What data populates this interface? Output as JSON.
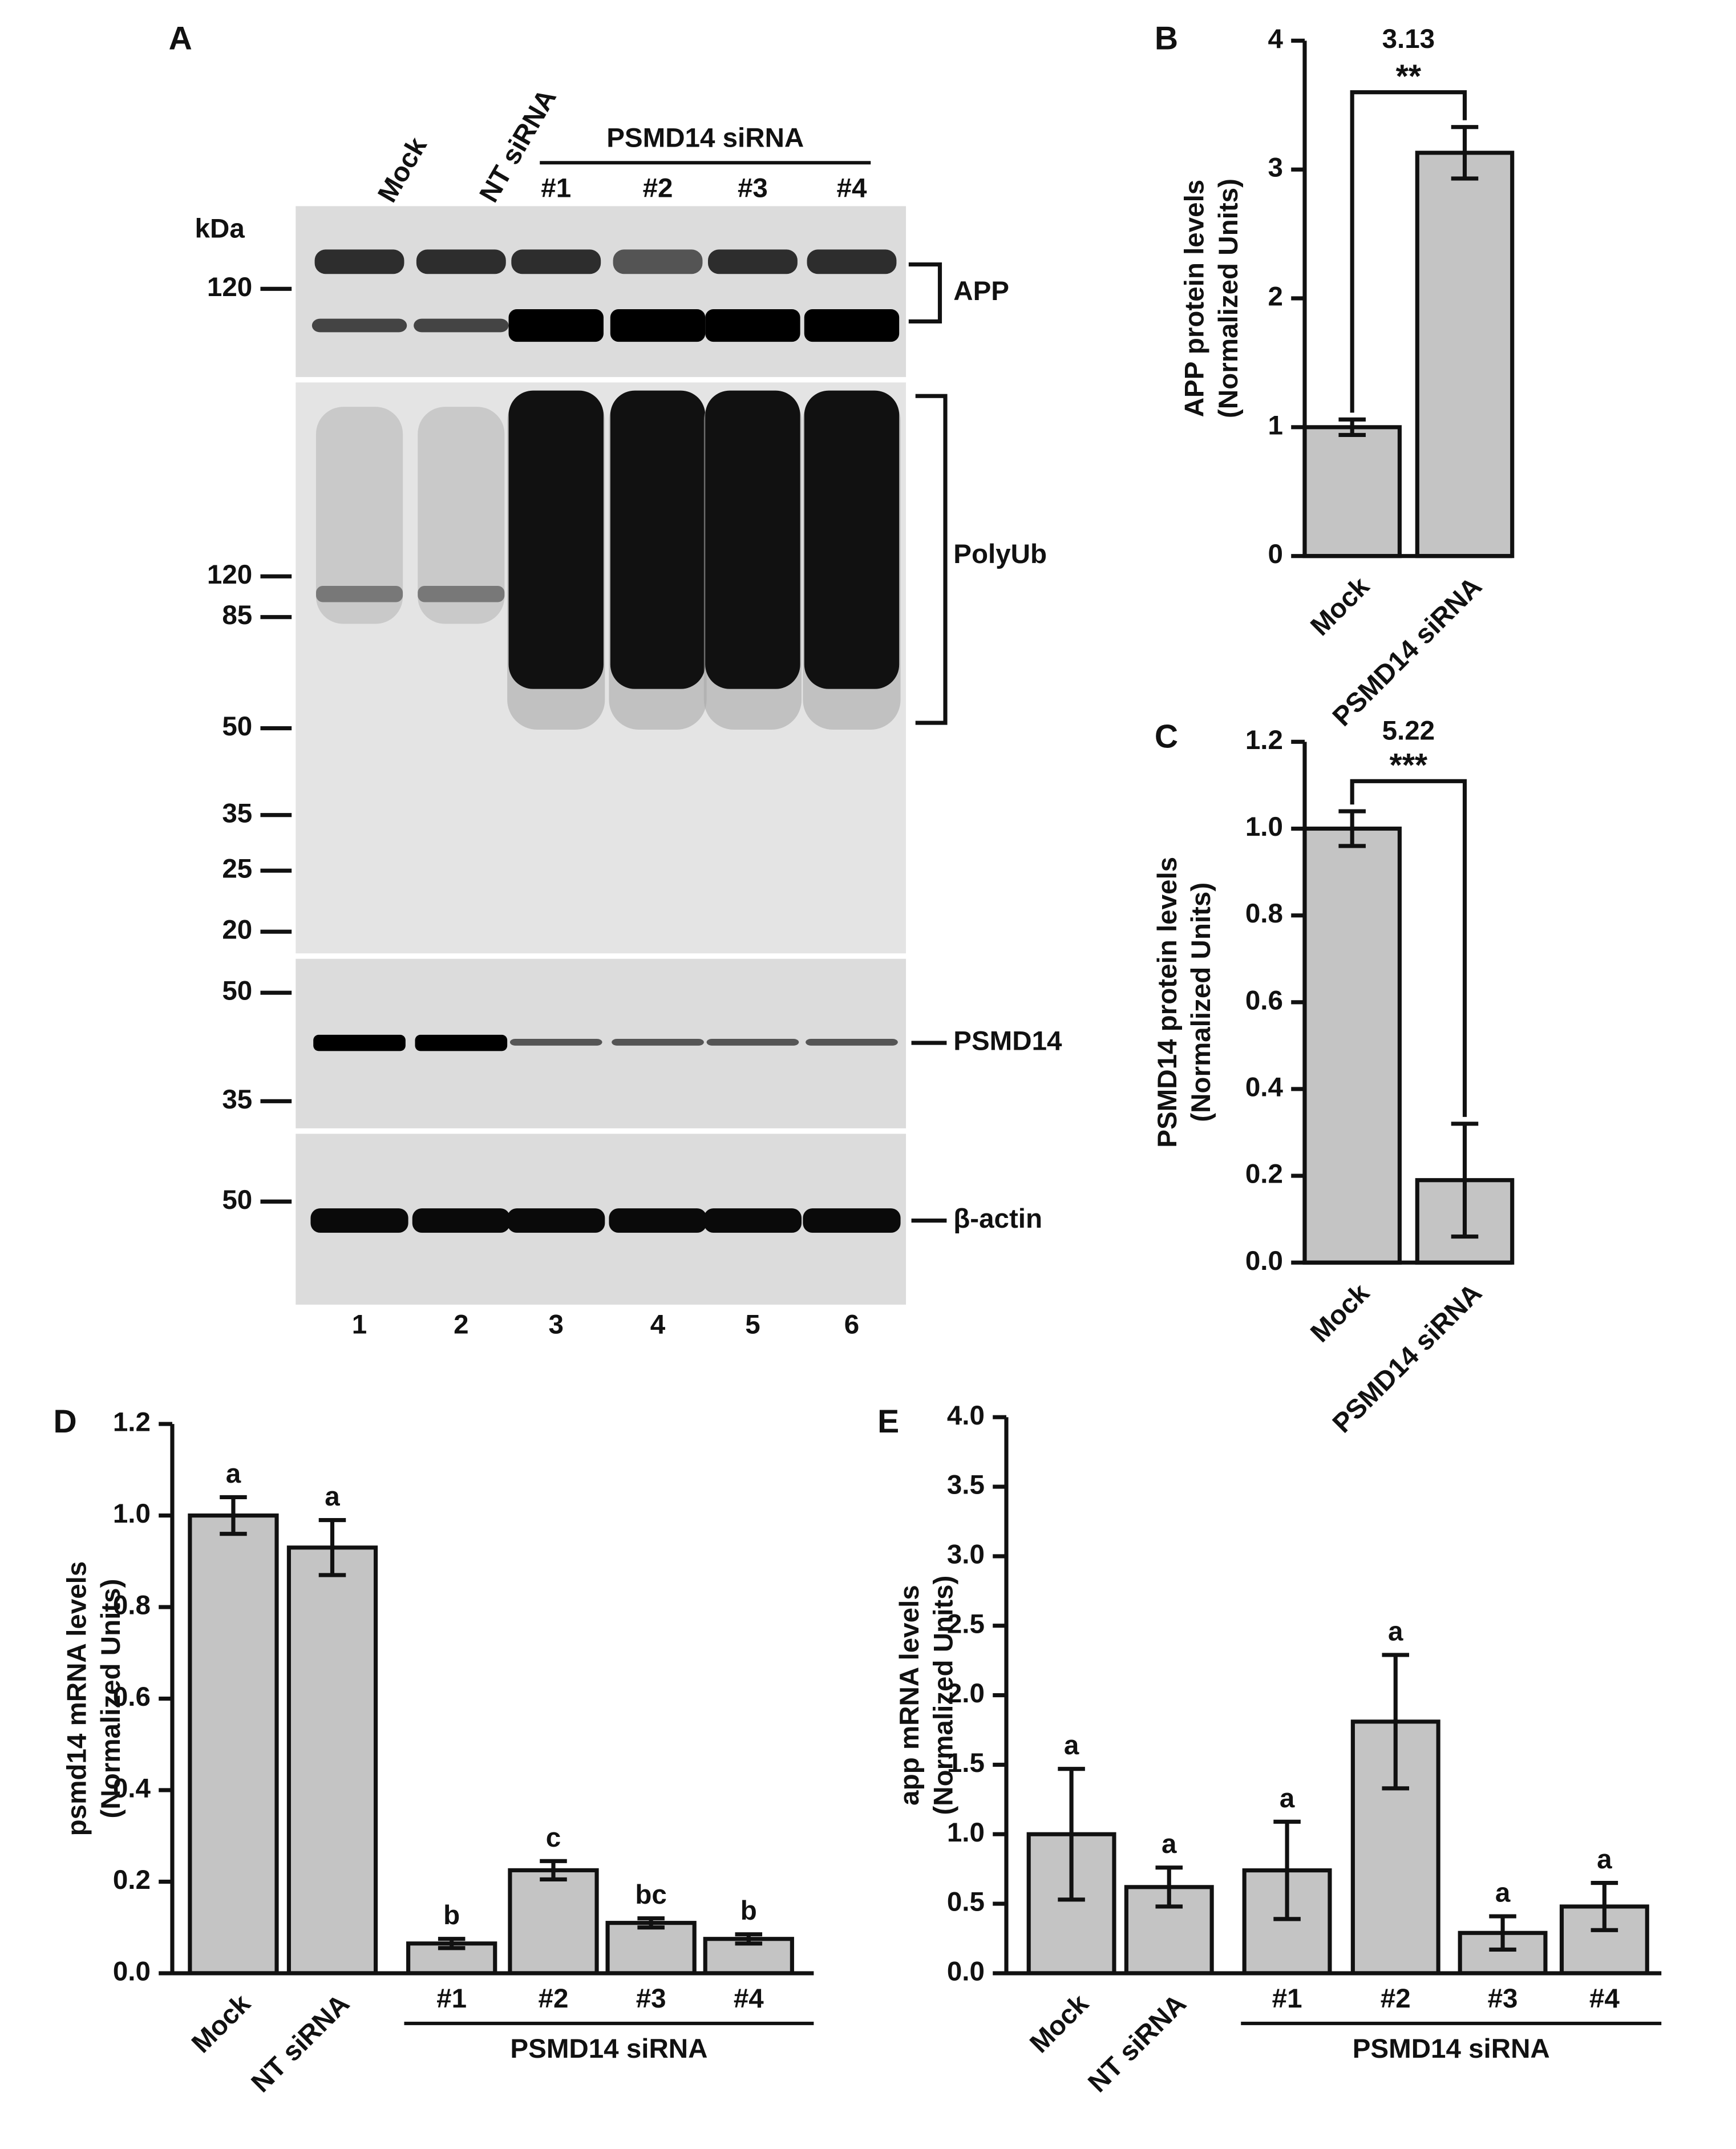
{
  "blot": {
    "label": "A",
    "unit": "kDa",
    "lanes": [
      "Mock",
      "NT siRNA"
    ],
    "group": "PSMD14 siRNA",
    "group_lanes": [
      "#1",
      "#2",
      "#3",
      "#4"
    ],
    "panels": [
      {
        "name": "APP",
        "markers": [
          120
        ]
      },
      {
        "name": "PolyUb",
        "markers": [
          120,
          85,
          50,
          35,
          25,
          20
        ]
      },
      {
        "name": "PSMD14",
        "markers": [
          50,
          35
        ]
      },
      {
        "name": "β-actin",
        "markers": [
          50
        ]
      }
    ],
    "lane_numbers": [
      1,
      2,
      3,
      4,
      5,
      6
    ]
  },
  "chart_data": [
    {
      "type": "bar",
      "label": "B",
      "ylabel": [
        "APP protein levels",
        "(Normalized Units)"
      ],
      "categories": [
        "Mock",
        "PSMD14 siRNA"
      ],
      "values": [
        1.0,
        3.13
      ],
      "errors": [
        0.06,
        0.2
      ],
      "color": "#c4c4c4",
      "ylim": [
        0,
        4
      ],
      "yticks": [
        0,
        1,
        2,
        3,
        4
      ],
      "grid": false,
      "annotation": "3.13",
      "significance": "**"
    },
    {
      "type": "bar",
      "label": "C",
      "ylabel": [
        "PSMD14 protein levels",
        "(Normalized Units)"
      ],
      "categories": [
        "Mock",
        "PSMD14 siRNA"
      ],
      "values": [
        1.0,
        0.19
      ],
      "errors": [
        0.04,
        0.13
      ],
      "color": "#c4c4c4",
      "ylim": [
        0,
        1.2
      ],
      "yticks": [
        {
          "value": 0,
          "label": "0.0"
        },
        0.2,
        0.4,
        0.6,
        0.8,
        {
          "value": 1,
          "label": "1.0"
        },
        1.2
      ],
      "grid": false,
      "annotation": "5.22",
      "significance": "***"
    },
    {
      "type": "bar",
      "label": "D",
      "ylabel": [
        "psmd14 mRNA levels",
        "(Normalized Units)"
      ],
      "categories": [
        "Mock",
        "NT siRNA",
        "#1",
        "#2",
        "#3",
        "#4"
      ],
      "values": [
        1.0,
        0.93,
        0.065,
        0.225,
        0.11,
        0.075
      ],
      "errors": [
        0.04,
        0.06,
        0.01,
        0.02,
        0.01,
        0.01
      ],
      "letters": [
        "a",
        "a",
        "b",
        "c",
        "bc",
        "b"
      ],
      "color": "#c4c4c4",
      "ylim": [
        0,
        1.2
      ],
      "yticks": [
        {
          "value": 0,
          "label": "0.0"
        },
        0.2,
        0.4,
        0.6,
        0.8,
        {
          "value": 1,
          "label": "1.0"
        },
        1.2
      ],
      "grid": false,
      "group": "PSMD14 siRNA"
    },
    {
      "type": "bar",
      "label": "E",
      "ylabel": [
        "app mRNA levels",
        "(Normalized Units)"
      ],
      "categories": [
        "Mock",
        "NT siRNA",
        "#1",
        "#2",
        "#3",
        "#4"
      ],
      "values": [
        1.0,
        0.62,
        0.74,
        1.81,
        0.29,
        0.48
      ],
      "errors": [
        0.47,
        0.14,
        0.35,
        0.48,
        0.12,
        0.17
      ],
      "letters": [
        "a",
        "a",
        "a",
        "a",
        "a",
        "a"
      ],
      "color": "#c4c4c4",
      "ylim": [
        0,
        4
      ],
      "yticks": [
        {
          "value": 0,
          "label": "0.0"
        },
        0.5,
        {
          "value": 1,
          "label": "1.0"
        },
        1.5,
        {
          "value": 2,
          "label": "2.0"
        },
        2.5,
        {
          "value": 3,
          "label": "3.0"
        },
        3.5,
        {
          "value": 4,
          "label": "4.0"
        }
      ],
      "grid": false,
      "group": "PSMD14 siRNA"
    }
  ]
}
